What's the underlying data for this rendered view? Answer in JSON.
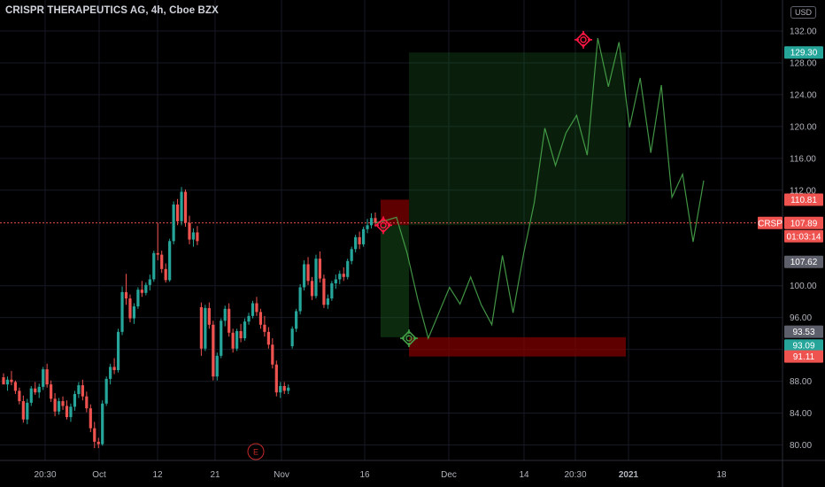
{
  "header": {
    "title": "CRISPR THERAPEUTICS AG, 4h, Cboe BZX",
    "currency_button": "USD"
  },
  "colors": {
    "up": "#26a69a",
    "down": "#ef5350",
    "target_zone": "#1b5e20",
    "stop_zone": "#7f0000",
    "forecast_line": "#4caf50",
    "marker_red": "#ff1744",
    "marker_green": "#43a047",
    "earnings": "#c62828"
  },
  "chart_data": {
    "type": "candlestick",
    "symbol": "CRSP",
    "timeframe": "4h",
    "exchange": "Cboe BZX",
    "currency": "USD",
    "y_axis": {
      "ticks": [
        80,
        84,
        88,
        92,
        96,
        100,
        112,
        116,
        120,
        124,
        128,
        132
      ],
      "range": [
        78.5,
        135
      ]
    },
    "x_axis": {
      "tick_labels": [
        "20:30",
        "Oct",
        "12",
        "21",
        "Nov",
        "16",
        "Dec",
        "14",
        "20:30",
        "2021",
        "18"
      ]
    },
    "price_tags": [
      {
        "value": "129.30",
        "kind": "target"
      },
      {
        "value": "110.81",
        "kind": "stop-level"
      },
      {
        "value": "107.89",
        "kind": "last",
        "symbol": "CRSP"
      },
      {
        "value": "01:03:14",
        "kind": "countdown"
      },
      {
        "value": "107.62",
        "kind": "entry"
      },
      {
        "value": "93.53",
        "kind": "level"
      },
      {
        "value": "93.09",
        "kind": "level"
      },
      {
        "value": "91.11",
        "kind": "stop"
      }
    ],
    "current_price": 107.89,
    "earnings_marker": "E",
    "candles": [
      [
        88.5,
        89,
        87.8,
        87.6
      ],
      [
        87.6,
        88.6,
        86.8,
        88.2
      ],
      [
        88.2,
        89.3,
        87.5,
        87.9
      ],
      [
        87.9,
        88.1,
        86.4,
        86.8
      ],
      [
        86.8,
        87.2,
        85.1,
        85.5
      ],
      [
        85.5,
        86.2,
        82.8,
        83.2
      ],
      [
        83.2,
        85.8,
        82.6,
        85.3
      ],
      [
        85.3,
        87.4,
        84.9,
        87.1
      ],
      [
        87.1,
        87.9,
        86.3,
        86.6
      ],
      [
        86.6,
        87.7,
        85.9,
        87.3
      ],
      [
        87.3,
        89.8,
        86.9,
        89.5
      ],
      [
        89.5,
        90.2,
        87.2,
        87.6
      ],
      [
        87.6,
        88.1,
        85.4,
        85.8
      ],
      [
        85.8,
        86.5,
        83.6,
        84.2
      ],
      [
        84.2,
        85.9,
        83.8,
        85.5
      ],
      [
        85.5,
        86.1,
        84.4,
        84.9
      ],
      [
        84.9,
        85.6,
        83.2,
        83.5
      ],
      [
        83.5,
        85.2,
        82.9,
        84.8
      ],
      [
        84.8,
        86.8,
        84.3,
        86.4
      ],
      [
        86.4,
        87.9,
        85.9,
        87.5
      ],
      [
        87.5,
        88.2,
        85.6,
        86.1
      ],
      [
        86.1,
        86.7,
        84.1,
        84.6
      ],
      [
        84.6,
        85.1,
        81.6,
        82.1
      ],
      [
        82.1,
        82.9,
        79.6,
        80.4
      ],
      [
        80.4,
        80.9,
        79.6,
        80.1
      ],
      [
        80.1,
        85.6,
        79.9,
        85.2
      ],
      [
        85.2,
        88.6,
        84.9,
        88.3
      ],
      [
        88.3,
        90.2,
        87.6,
        89.8
      ],
      [
        89.8,
        90.9,
        88.9,
        89.4
      ],
      [
        89.4,
        94.6,
        89.1,
        94.2
      ],
      [
        94.2,
        99.9,
        93.8,
        99.2
      ],
      [
        99.2,
        101.5,
        97.6,
        98.4
      ],
      [
        98.4,
        98.9,
        95.4,
        95.9
      ],
      [
        95.9,
        97.8,
        95.2,
        97.4
      ],
      [
        97.4,
        99.8,
        97.1,
        99.5
      ],
      [
        99.5,
        100.6,
        98.6,
        99.1
      ],
      [
        99.1,
        100.4,
        98.8,
        100.1
      ],
      [
        100.1,
        101.4,
        99.4,
        100.8
      ],
      [
        100.8,
        104.4,
        100.5,
        104.1
      ],
      [
        104.1,
        107.9,
        103.2,
        103.9
      ],
      [
        103.9,
        104.4,
        101.6,
        102.1
      ],
      [
        102.1,
        102.8,
        100.4,
        100.7
      ],
      [
        100.7,
        105.9,
        100.5,
        105.6
      ],
      [
        105.6,
        110.6,
        105.2,
        110.2
      ],
      [
        110.2,
        110.9,
        107.6,
        108.1
      ],
      [
        108.1,
        112.4,
        107.6,
        111.8
      ],
      [
        111.8,
        112.1,
        107.4,
        107.9
      ],
      [
        107.9,
        108.8,
        105.2,
        105.8
      ],
      [
        105.8,
        107.2,
        104.9,
        106.7
      ],
      [
        106.7,
        107.5,
        105.1,
        105.6
      ],
      [
        97.3,
        97.9,
        91.2,
        92.1
      ],
      [
        92.1,
        97.6,
        91.8,
        97.2
      ],
      [
        97.2,
        97.9,
        94.6,
        95.1
      ],
      [
        95.1,
        95.6,
        88.1,
        88.6
      ],
      [
        88.6,
        91.6,
        88.1,
        91.2
      ],
      [
        91.2,
        95.9,
        90.9,
        95.6
      ],
      [
        95.6,
        97.5,
        94.9,
        97.1
      ],
      [
        97.1,
        97.8,
        93.6,
        94.1
      ],
      [
        94.1,
        94.6,
        91.6,
        92.1
      ],
      [
        92.1,
        94.6,
        91.8,
        94.3
      ],
      [
        94.3,
        95.2,
        92.9,
        93.4
      ],
      [
        93.4,
        95.9,
        93.1,
        95.5
      ],
      [
        95.5,
        96.6,
        95.1,
        96.2
      ],
      [
        96.2,
        98.1,
        95.9,
        97.8
      ],
      [
        97.8,
        98.6,
        96.2,
        96.7
      ],
      [
        96.7,
        97.1,
        94.6,
        95.1
      ],
      [
        95.1,
        96.2,
        93.6,
        94.2
      ],
      [
        94.2,
        94.8,
        92.1,
        92.6
      ],
      [
        92.6,
        93.4,
        89.6,
        90.1
      ],
      [
        90.1,
        90.6,
        86.1,
        86.6
      ],
      [
        86.6,
        87.9,
        85.9,
        87.4
      ],
      [
        87.4,
        87.9,
        86.4,
        86.8
      ],
      [
        86.8,
        87.6,
        86.4,
        87.2
      ],
      [
        92.4,
        94.9,
        92.1,
        94.6
      ],
      [
        94.6,
        97.1,
        94.2,
        96.8
      ],
      [
        96.8,
        100.2,
        96.4,
        99.8
      ],
      [
        99.8,
        103.2,
        99.4,
        102.7
      ],
      [
        102.7,
        103.6,
        100.1,
        100.6
      ],
      [
        100.6,
        101.1,
        98.2,
        98.7
      ],
      [
        98.7,
        103.9,
        98.4,
        103.4
      ],
      [
        103.4,
        104.3,
        100.4,
        100.9
      ],
      [
        100.9,
        101.4,
        97.2,
        97.6
      ],
      [
        97.6,
        98.9,
        97.1,
        98.4
      ],
      [
        98.4,
        100.6,
        98.1,
        100.3
      ],
      [
        100.3,
        101.4,
        99.6,
        100.8
      ],
      [
        100.8,
        101.9,
        100.2,
        101.5
      ],
      [
        101.5,
        102.3,
        100.6,
        101.1
      ],
      [
        101.1,
        103.4,
        100.8,
        103.1
      ],
      [
        103.1,
        104.9,
        102.7,
        104.6
      ],
      [
        104.6,
        106.4,
        104.2,
        106.1
      ],
      [
        106.1,
        106.8,
        104.6,
        105.2
      ],
      [
        105.2,
        107.4,
        104.9,
        107.1
      ],
      [
        107.1,
        108.4,
        106.6,
        107.6
      ],
      [
        107.6,
        109.1,
        107.2,
        108.5
      ],
      [
        108.5,
        109.2,
        107.4,
        107.9
      ]
    ],
    "forecast_path": [
      107.9,
      108.2,
      108.6,
      104.1,
      98.3,
      93.4,
      96.6,
      99.8,
      97.7,
      101.1,
      97.6,
      95.1,
      103.8,
      96.6,
      104.0,
      110.4,
      119.8,
      115.1,
      119.2,
      121.4,
      116.4,
      131.1,
      125.0,
      130.6,
      119.9,
      126.1,
      116.7,
      125.2,
      111.1,
      114.0,
      105.5,
      113.2
    ],
    "position": {
      "entry": 107.62,
      "target": 129.3,
      "stop": 91.11
    }
  }
}
